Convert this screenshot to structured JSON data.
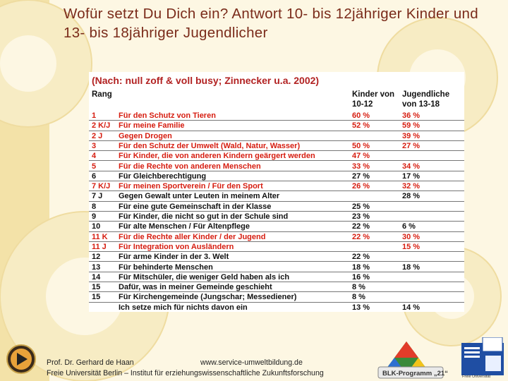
{
  "title": "Wofür setzt Du Dich ein? Antwort 10- bis 12jähriger Kinder und 13- bis 18jähriger Jugendlicher",
  "table": {
    "subtitle": "(Nach: null zoff & voll busy; Zinnecker u.a. 2002)",
    "header_rank": "Rang",
    "header_kids_1": "Kinder von",
    "header_kids_2": "10-12",
    "header_youth_1": "Jugendliche",
    "header_youth_2": "von 13-18",
    "rows": [
      {
        "rank": "1",
        "text": "Für den Schutz von Tieren",
        "kids": "60 %",
        "youth": "36 %",
        "color": "red"
      },
      {
        "rank": "2 K/J",
        "text": "Für meine Familie",
        "kids": "52 %",
        "youth": "59 %",
        "color": "red"
      },
      {
        "rank": "2 J",
        "text": "Gegen Drogen",
        "kids": "",
        "youth": "39 %",
        "color": "red"
      },
      {
        "rank": "3",
        "text": "Für den Schutz der Umwelt (Wald, Natur, Wasser)",
        "kids": "50 %",
        "youth": "27 %",
        "color": "red"
      },
      {
        "rank": "4",
        "text": "Für Kinder, die von anderen Kindern geärgert werden",
        "kids": "47 %",
        "youth": "",
        "color": "red"
      },
      {
        "rank": "5",
        "text": "Für die Rechte von anderen Menschen",
        "kids": "33 %",
        "youth": "34 %",
        "color": "red"
      },
      {
        "rank": "6",
        "text": "Für Gleichberechtigung",
        "kids": "27 %",
        "youth": "17 %",
        "color": "black"
      },
      {
        "rank": "7 K/J",
        "text": "Für meinen Sportverein / Für den Sport",
        "kids": "26 %",
        "youth": "32 %",
        "color": "red"
      },
      {
        "rank": "7 J",
        "text": "Gegen Gewalt unter Leuten in meinem Alter",
        "kids": "",
        "youth": "28 %",
        "color": "black"
      },
      {
        "rank": "8",
        "text": "Für eine gute Gemeinschaft in der Klasse",
        "kids": "25 %",
        "youth": "",
        "color": "black"
      },
      {
        "rank": "9",
        "text": "Für Kinder, die nicht so gut in der Schule sind",
        "kids": "23 %",
        "youth": "",
        "color": "black"
      },
      {
        "rank": "10",
        "text": "Für alte Menschen / Für Altenpflege",
        "kids": "22 %",
        "youth": "6 %",
        "color": "black"
      },
      {
        "rank": "11 K",
        "text": "Für die Rechte aller Kinder / der Jugend",
        "kids": "22 %",
        "youth": "30 %",
        "color": "red"
      },
      {
        "rank": "11 J",
        "text": "Für Integration von Ausländern",
        "kids": "",
        "youth": "15 %",
        "color": "red"
      },
      {
        "rank": "12",
        "text": "Für arme Kinder in der 3. Welt",
        "kids": "22 %",
        "youth": "",
        "color": "black"
      },
      {
        "rank": "13",
        "text": "Für behinderte Menschen",
        "kids": "18 %",
        "youth": "18 %",
        "color": "black"
      },
      {
        "rank": "14",
        "text": "Für Mitschüler, die weniger Geld haben als ich",
        "kids": "16 %",
        "youth": "",
        "color": "black"
      },
      {
        "rank": "15",
        "text": "Dafür, was in meiner Gemeinde geschieht",
        "kids": "8 %",
        "youth": "",
        "color": "black"
      },
      {
        "rank": "15",
        "text": "Für Kirchengemeinde (Jungschar; Messediener)",
        "kids": "8 %",
        "youth": "",
        "color": "black"
      },
      {
        "rank": "",
        "text": "Ich setze mich für nichts davon ein",
        "kids": "13 %",
        "youth": "14 %",
        "color": "black"
      }
    ]
  },
  "footer": {
    "author": "Prof. Dr. Gerhard de Haan",
    "url": "www.service-umweltbildung.de",
    "institute": "Freie Universität Berlin – Institut für erziehungswissenschaftliche Zukunftsforschung"
  },
  "logos": {
    "blk": "BLK-Programm „21“",
    "fu": "Freie Universität"
  },
  "colors": {
    "title": "#7a2b1a",
    "red": "#d61d10",
    "bg": "#fdf7e3"
  }
}
